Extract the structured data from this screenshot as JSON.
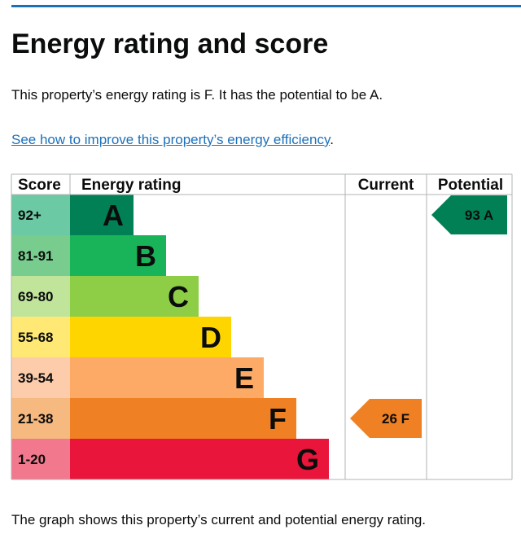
{
  "heading": "Energy rating and score",
  "intro": "This property’s energy rating is F. It has the potential to be A.",
  "link_text": "See how to improve this property’s energy efficiency",
  "link_suffix": ".",
  "footer": "The graph shows this property’s current and potential energy rating.",
  "colors": {
    "link": "#1d70b8",
    "grid": "#b1b4b6"
  },
  "chart_data": {
    "type": "bar",
    "headers": {
      "score": "Score",
      "rating": "Energy rating",
      "current": "Current",
      "potential": "Potential"
    },
    "bands": [
      {
        "letter": "A",
        "range": "92+",
        "color": "#008054",
        "range_bg": "#6bc9a3"
      },
      {
        "letter": "B",
        "range": "81-91",
        "color": "#19b459",
        "range_bg": "#78cc8e"
      },
      {
        "letter": "C",
        "range": "69-80",
        "color": "#8dce46",
        "range_bg": "#c0e49a"
      },
      {
        "letter": "D",
        "range": "55-68",
        "color": "#ffd500",
        "range_bg": "#ffe974"
      },
      {
        "letter": "E",
        "range": "39-54",
        "color": "#fcaa65",
        "range_bg": "#fdccaa"
      },
      {
        "letter": "F",
        "range": "21-38",
        "color": "#ef8023",
        "range_bg": "#f6b97f"
      },
      {
        "letter": "G",
        "range": "1-20",
        "color": "#e9153b",
        "range_bg": "#f2788d"
      }
    ],
    "current": {
      "score": 26,
      "band": "F",
      "label": "26 F"
    },
    "potential": {
      "score": 93,
      "band": "A",
      "label": "93 A"
    }
  }
}
